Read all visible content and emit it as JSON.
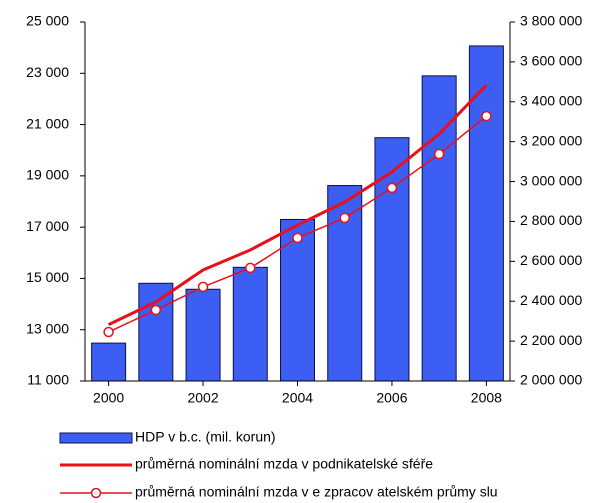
{
  "chart_data": {
    "type": "bar_line",
    "x": [
      2000,
      2001,
      2002,
      2003,
      2004,
      2005,
      2006,
      2007,
      2008
    ],
    "xlim": [
      1999.5,
      2008.5
    ],
    "xticks": [
      2000,
      2002,
      2004,
      2006,
      2008
    ],
    "ylim": [
      11000,
      25000
    ],
    "yticks": [
      {
        "value": 11000,
        "label": "11 000"
      },
      {
        "value": 13000,
        "label": "13 000"
      },
      {
        "value": 15000,
        "label": "15 000"
      },
      {
        "value": 17000,
        "label": "17 000"
      },
      {
        "value": 19000,
        "label": "19 000"
      },
      {
        "value": 21000,
        "label": "21 000"
      },
      {
        "value": 23000,
        "label": "23 000"
      },
      {
        "value": 25000,
        "label": "25 000"
      }
    ],
    "y2lim": [
      2000000,
      3800000
    ],
    "y2ticks": [
      {
        "value": 2000000,
        "label": "2 000 000"
      },
      {
        "value": 2200000,
        "label": "2 200 000"
      },
      {
        "value": 2400000,
        "label": "2 400 000"
      },
      {
        "value": 2600000,
        "label": "2 600 000"
      },
      {
        "value": 2800000,
        "label": "2 800 000"
      },
      {
        "value": 3000000,
        "label": "3 000 000"
      },
      {
        "value": 3200000,
        "label": "3 200 000"
      },
      {
        "value": 3400000,
        "label": "3 400 000"
      },
      {
        "value": 3600000,
        "label": "3 600 000"
      },
      {
        "value": 3800000,
        "label": "3 800 000"
      }
    ],
    "series": [
      {
        "name": "HDP v  b.c. (mil. korun)",
        "type": "bar",
        "axis": "y2",
        "color": "#3d5ef2",
        "values": [
          2190000,
          2490000,
          2460000,
          2570000,
          2810000,
          2980000,
          3220000,
          3530000,
          3680000
        ]
      },
      {
        "name": "průměrná nominální mzda v  podnikatelské sféře",
        "type": "line",
        "color": "#e8101a",
        "values": [
          13200,
          14080,
          15330,
          16110,
          17080,
          17980,
          19150,
          20630,
          22540
        ]
      },
      {
        "name": "průměrná nominální mzda v e zpracov atelském průmy slu",
        "type": "line_marker",
        "color": "#e8101a",
        "values": [
          12910,
          13770,
          14670,
          15410,
          16580,
          17360,
          18530,
          19850,
          21330
        ]
      }
    ]
  }
}
